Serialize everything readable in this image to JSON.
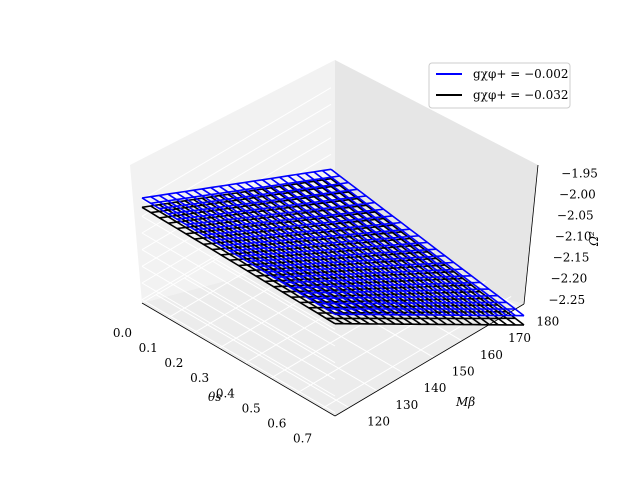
{
  "chart_data": {
    "type": "surface3d",
    "x": {
      "label": "θs",
      "range": [
        0.0,
        0.75
      ],
      "ticks": [
        "0.0",
        "0.1",
        "0.2",
        "0.3",
        "0.4",
        "0.5",
        "0.6",
        "0.7"
      ]
    },
    "y": {
      "label": "Mβ",
      "range": [
        115,
        182
      ],
      "ticks": [
        "120",
        "130",
        "140",
        "150",
        "160",
        "170",
        "180"
      ]
    },
    "z": {
      "label": "Ω²",
      "range": [
        -2.26,
        -1.93
      ],
      "ticks": [
        "−1.95",
        "−2.00",
        "−2.05",
        "−2.10",
        "−2.15",
        "−2.20",
        "−2.25"
      ]
    },
    "series": [
      {
        "name": "gχφ+ = −0.002",
        "color": "#0000ff",
        "surface_domain": {
          "theta": [
            0.0,
            0.75
          ],
          "M": [
            115,
            182
          ]
        }
      },
      {
        "name": "gχφ+ = −0.032",
        "color": "#000000",
        "surface_domain": {
          "theta": [
            0.0,
            0.75
          ],
          "M": [
            115,
            182
          ]
        }
      }
    ],
    "legend": {
      "placement": "top-right",
      "entries": [
        "gχφ+ = −0.002",
        "gχφ+ = −0.032"
      ]
    },
    "grid": true
  }
}
